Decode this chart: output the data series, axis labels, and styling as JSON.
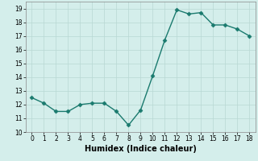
{
  "x": [
    0,
    1,
    2,
    3,
    4,
    5,
    6,
    7,
    8,
    9,
    10,
    11,
    12,
    13,
    14,
    15,
    16,
    17,
    18
  ],
  "y": [
    12.5,
    12.1,
    11.5,
    11.5,
    12.0,
    12.1,
    12.1,
    11.5,
    10.5,
    11.6,
    14.1,
    16.7,
    18.9,
    18.6,
    18.7,
    17.8,
    17.8,
    17.5,
    17.0
  ],
  "line_color": "#1a7a6e",
  "marker": "D",
  "markersize": 2.5,
  "linewidth": 1.0,
  "xlabel": "Humidex (Indice chaleur)",
  "xlabel_fontsize": 7,
  "ylim": [
    10,
    19.5
  ],
  "xlim": [
    -0.5,
    18.5
  ],
  "yticks": [
    10,
    11,
    12,
    13,
    14,
    15,
    16,
    17,
    18,
    19
  ],
  "xticks": [
    0,
    1,
    2,
    3,
    4,
    5,
    6,
    7,
    8,
    9,
    10,
    11,
    12,
    13,
    14,
    15,
    16,
    17,
    18
  ],
  "background_color": "#d4eeeb",
  "grid_color": "#b8d8d4",
  "tick_fontsize": 5.5
}
